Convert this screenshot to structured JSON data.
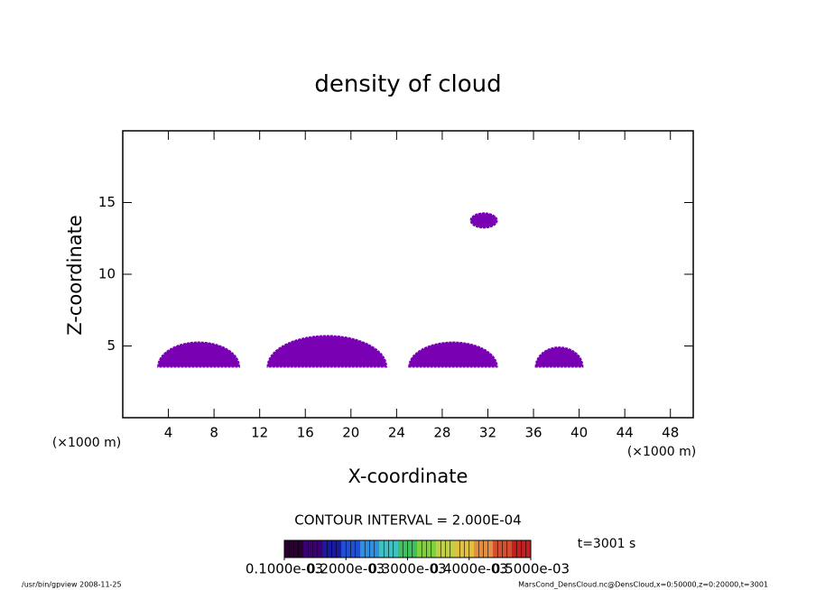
{
  "chart_data": {
    "type": "contour",
    "title": "density of cloud",
    "x_label": "X-coordinate",
    "y_label": "Z-coordinate",
    "x_unit": "(×1000 m)",
    "y_unit": "(×1000 m)",
    "xlim": [
      0,
      50
    ],
    "xticks": [
      4,
      8,
      12,
      16,
      20,
      24,
      28,
      32,
      36,
      40,
      44,
      48
    ],
    "ylim": [
      0,
      20
    ],
    "yticks": [
      5,
      10,
      15
    ],
    "color": "#7a00b4",
    "cloud_regions": [
      {
        "x": [
          3.1,
          10.2
        ],
        "z": [
          3.55,
          5.25
        ]
      },
      {
        "x": [
          12.7,
          23.1
        ],
        "z": [
          3.55,
          5.7
        ]
      },
      {
        "x": [
          25.1,
          32.8
        ],
        "z": [
          3.55,
          5.25
        ]
      },
      {
        "x": [
          36.2,
          40.3
        ],
        "z": [
          3.55,
          4.9
        ]
      },
      {
        "x": [
          30.5,
          32.8
        ],
        "z": [
          13.25,
          14.25
        ]
      }
    ],
    "contour_interval": "CONTOUR INTERVAL = 2.000E-04",
    "time_label": "t=3001 s",
    "colorbar": {
      "lim": [
        0.0001,
        0.0005
      ],
      "ticks": [
        {
          "value": 0.0001,
          "label": "0.1000e-03"
        },
        {
          "value": 0.0002,
          "label": "0.2000e-03"
        },
        {
          "value": 0.0003,
          "label": "0.3000e-03"
        },
        {
          "value": 0.0004,
          "label": "0.4000e-03"
        },
        {
          "value": 0.0005,
          "label": "0.5000e-03"
        }
      ],
      "colors": [
        "#2a0030",
        "#3a0070",
        "#1a1aa0",
        "#2050d0",
        "#3090e0",
        "#40c0c0",
        "#40c060",
        "#80d040",
        "#c0d040",
        "#e0c040",
        "#e09040",
        "#d05030",
        "#c02020"
      ]
    },
    "footer_left": "/usr/bin/gpview   2008-11-25",
    "footer_right": "MarsCond_DensCloud.nc@DensCloud,x=0:50000,z=0:20000,t=3001"
  }
}
